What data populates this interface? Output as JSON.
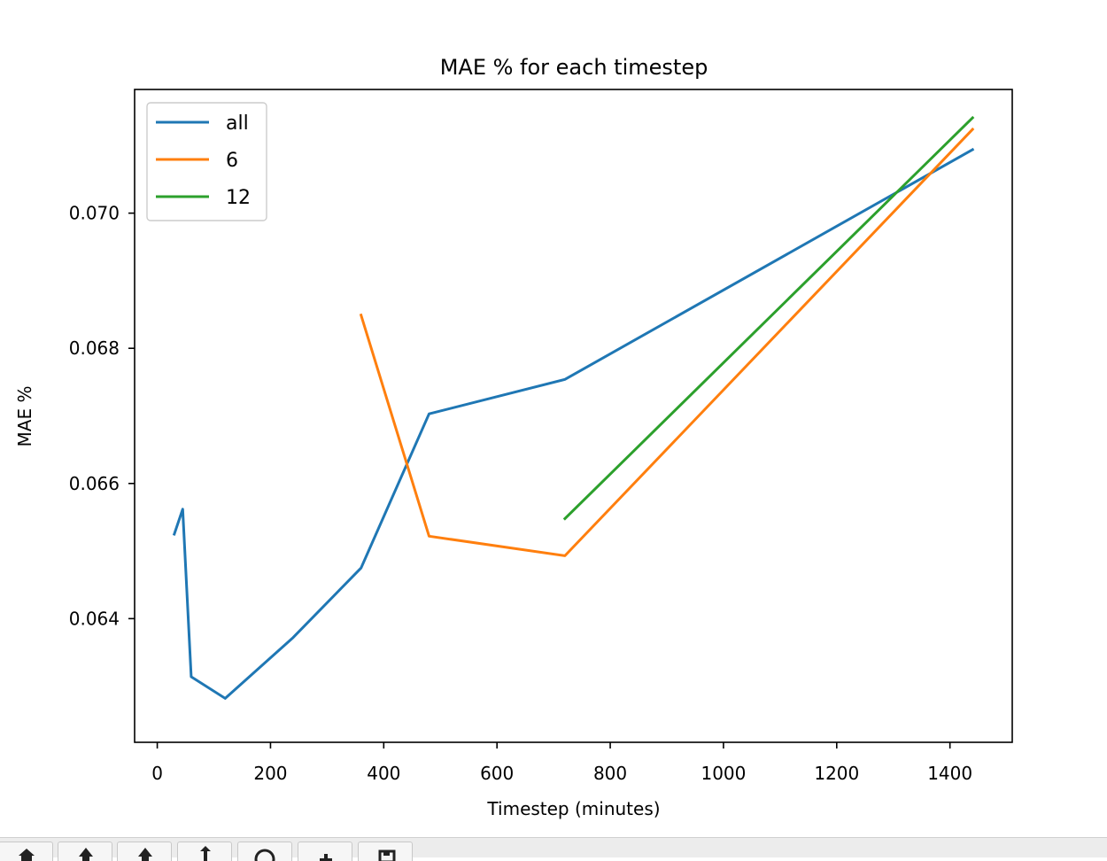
{
  "chart_data": {
    "type": "line",
    "title": "MAE % for each timestep",
    "xlabel": "Timestep (minutes)",
    "ylabel": "MAE %",
    "xlim": [
      -40,
      1510
    ],
    "ylim": [
      0.06217,
      0.07183
    ],
    "xticks": [
      0,
      200,
      400,
      600,
      800,
      1000,
      1200,
      1400
    ],
    "yticks": [
      0.064,
      0.066,
      0.068,
      0.07
    ],
    "ytick_labels": [
      "0.064",
      "0.066",
      "0.068",
      "0.070"
    ],
    "grid": false,
    "legend_position": "upper left",
    "series": [
      {
        "name": "all",
        "color": "#1f77b4",
        "x": [
          30,
          45,
          60,
          120,
          240,
          360,
          480,
          720,
          1440
        ],
        "y": [
          0.06525,
          0.06562,
          0.06314,
          0.06282,
          0.06372,
          0.06475,
          0.06703,
          0.06754,
          0.07094
        ]
      },
      {
        "name": "6",
        "color": "#ff7f0e",
        "x": [
          360,
          480,
          720,
          1440
        ],
        "y": [
          0.06849,
          0.06522,
          0.06493,
          0.07124
        ]
      },
      {
        "name": "12",
        "color": "#2ca02c",
        "x": [
          720,
          1440
        ],
        "y": [
          0.06548,
          0.07141
        ]
      }
    ]
  },
  "toolbar": {
    "buttons": [
      {
        "name": "home-button",
        "icon": "home-icon"
      },
      {
        "name": "back-button",
        "icon": "back-arrow-icon"
      },
      {
        "name": "forward-button",
        "icon": "forward-arrow-icon"
      },
      {
        "name": "pan-button",
        "icon": "pan-icon"
      },
      {
        "name": "zoom-button",
        "icon": "zoom-icon"
      },
      {
        "name": "subplots-button",
        "icon": "subplots-icon"
      },
      {
        "name": "save-button",
        "icon": "save-icon"
      }
    ]
  }
}
